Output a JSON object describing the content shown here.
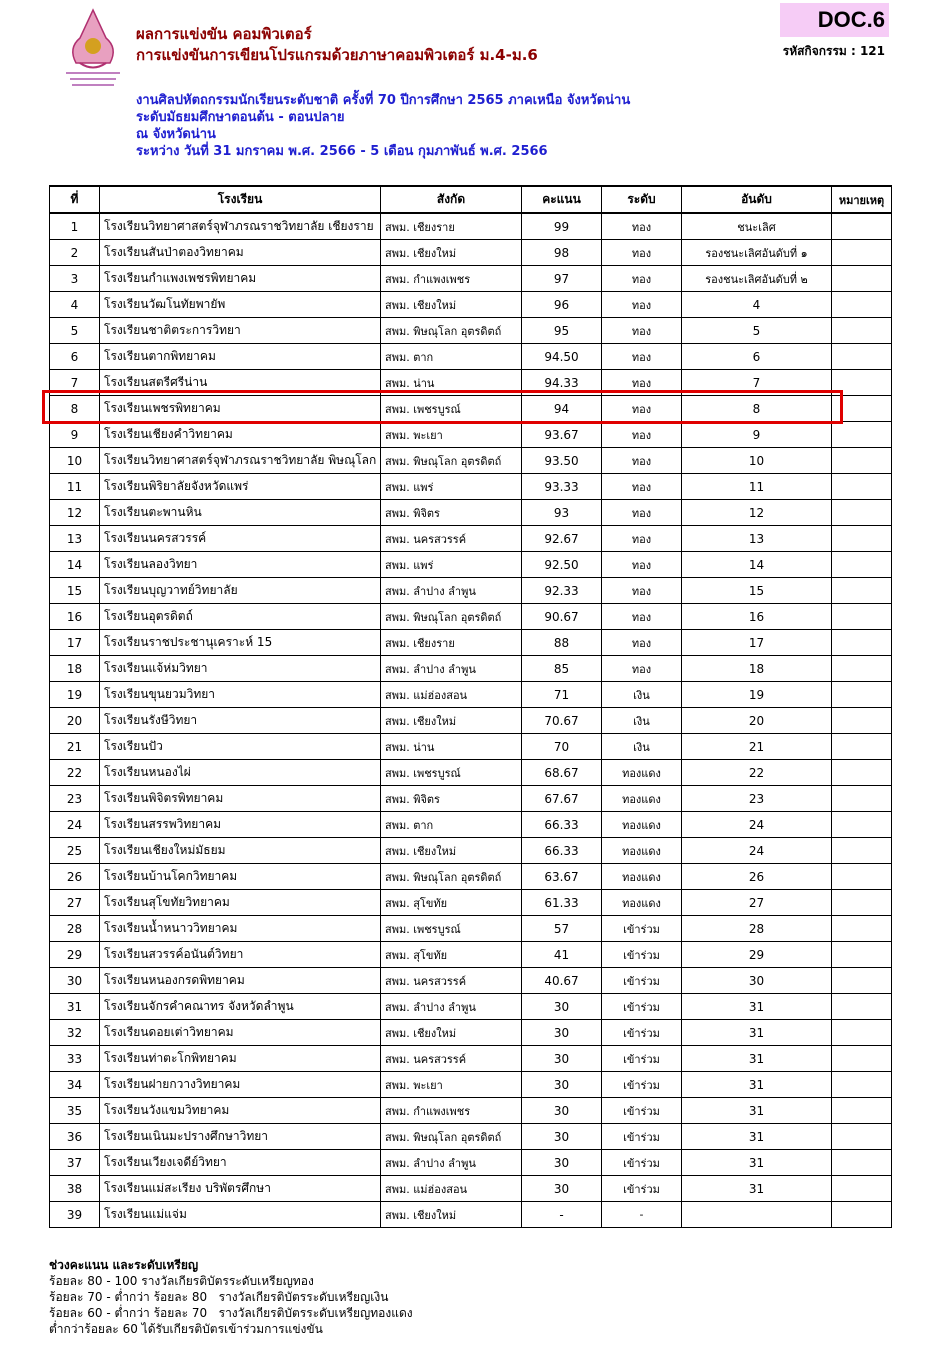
{
  "header": {
    "title1": "ผลการแข่งขัน คอมพิวเตอร์",
    "title2": "การแข่งขันการเขียนโปรแกรมด้วยภาษาคอมพิวเตอร์ ม.4-ม.6",
    "line1": "งานศิลปหัตถกรรมนักเรียนระดับชาติ ครั้งที่ 70 ปีการศึกษา 2565 ภาคเหนือ จังหวัดน่าน",
    "line2": "ระดับมัธยมศึกษาตอนต้น - ตอนปลาย",
    "line3": "ณ จังหวัดน่าน",
    "line4": "ระหว่าง วันที่ 31 มกราคม พ.ศ. 2566 - 5 เดือน กุมภาพันธ์ พ.ศ. 2566",
    "doc": "DOC.6",
    "code": "รหัสกิจกรรม : 121"
  },
  "table": {
    "columns": [
      "ที่",
      "โรงเรียน",
      "สังกัด",
      "คะแนน",
      "ระดับ",
      "อันดับ",
      "หมายเหตุ"
    ],
    "highlighted_row": 8,
    "rows": [
      [
        "1",
        "โรงเรียนวิทยาศาสตร์จุฬาภรณราชวิทยาลัย เชียงราย",
        "สพม. เชียงราย",
        "99",
        "ทอง",
        "ชนะเลิศ",
        ""
      ],
      [
        "2",
        "โรงเรียนสันป่าตองวิทยาคม",
        "สพม. เชียงใหม่",
        "98",
        "ทอง",
        "รองชนะเลิศอันดับที่ ๑",
        ""
      ],
      [
        "3",
        "โรงเรียนกำแพงเพชรพิทยาคม",
        "สพม. กำแพงเพชร",
        "97",
        "ทอง",
        "รองชนะเลิศอันดับที่ ๒",
        ""
      ],
      [
        "4",
        "โรงเรียนวัฒโนทัยพายัพ",
        "สพม. เชียงใหม่",
        "96",
        "ทอง",
        "4",
        ""
      ],
      [
        "5",
        "โรงเรียนชาติตระการวิทยา",
        "สพม. พิษณุโลก อุตรดิตถ์",
        "95",
        "ทอง",
        "5",
        ""
      ],
      [
        "6",
        "โรงเรียนตากพิทยาคม",
        "สพม. ตาก",
        "94.50",
        "ทอง",
        "6",
        ""
      ],
      [
        "7",
        "โรงเรียนสตรีศรีน่าน",
        "สพม. น่าน",
        "94.33",
        "ทอง",
        "7",
        ""
      ],
      [
        "8",
        "โรงเรียนเพชรพิทยาคม",
        "สพม. เพชรบูรณ์",
        "94",
        "ทอง",
        "8",
        ""
      ],
      [
        "9",
        "โรงเรียนเชียงคำวิทยาคม",
        "สพม. พะเยา",
        "93.67",
        "ทอง",
        "9",
        ""
      ],
      [
        "10",
        "โรงเรียนวิทยาศาสตร์จุฬาภรณราชวิทยาลัย พิษณุโลก",
        "สพม. พิษณุโลก อุตรดิตถ์",
        "93.50",
        "ทอง",
        "10",
        ""
      ],
      [
        "11",
        "โรงเรียนพิริยาลัยจังหวัดแพร่",
        "สพม. แพร่",
        "93.33",
        "ทอง",
        "11",
        ""
      ],
      [
        "12",
        "โรงเรียนตะพานหิน",
        "สพม. พิจิตร",
        "93",
        "ทอง",
        "12",
        ""
      ],
      [
        "13",
        "โรงเรียนนครสวรรค์",
        "สพม. นครสวรรค์",
        "92.67",
        "ทอง",
        "13",
        ""
      ],
      [
        "14",
        "โรงเรียนลองวิทยา",
        "สพม. แพร่",
        "92.50",
        "ทอง",
        "14",
        ""
      ],
      [
        "15",
        "โรงเรียนบุญวาทย์วิทยาลัย",
        "สพม. ลำปาง ลำพูน",
        "92.33",
        "ทอง",
        "15",
        ""
      ],
      [
        "16",
        "โรงเรียนอุตรดิตถ์",
        "สพม. พิษณุโลก อุตรดิตถ์",
        "90.67",
        "ทอง",
        "16",
        ""
      ],
      [
        "17",
        "โรงเรียนราชประชานุเคราะห์ 15",
        "สพม. เชียงราย",
        "88",
        "ทอง",
        "17",
        ""
      ],
      [
        "18",
        "โรงเรียนแจ้ห่มวิทยา",
        "สพม. ลำปาง ลำพูน",
        "85",
        "ทอง",
        "18",
        ""
      ],
      [
        "19",
        "โรงเรียนขุนยวมวิทยา",
        "สพม. แม่ฮ่องสอน",
        "71",
        "เงิน",
        "19",
        ""
      ],
      [
        "20",
        "โรงเรียนรังษีวิทยา",
        "สพม. เชียงใหม่",
        "70.67",
        "เงิน",
        "20",
        ""
      ],
      [
        "21",
        "โรงเรียนปัว",
        "สพม. น่าน",
        "70",
        "เงิน",
        "21",
        ""
      ],
      [
        "22",
        "โรงเรียนหนองไผ่",
        "สพม. เพชรบูรณ์",
        "68.67",
        "ทองแดง",
        "22",
        ""
      ],
      [
        "23",
        "โรงเรียนพิจิตรพิทยาคม",
        "สพม. พิจิตร",
        "67.67",
        "ทองแดง",
        "23",
        ""
      ],
      [
        "24",
        "โรงเรียนสรรพวิทยาคม",
        "สพม. ตาก",
        "66.33",
        "ทองแดง",
        "24",
        ""
      ],
      [
        "25",
        "โรงเรียนเชียงใหม่มัธยม",
        "สพม. เชียงใหม่",
        "66.33",
        "ทองแดง",
        "24",
        ""
      ],
      [
        "26",
        "โรงเรียนบ้านโคกวิทยาคม",
        "สพม. พิษณุโลก อุตรดิตถ์",
        "63.67",
        "ทองแดง",
        "26",
        ""
      ],
      [
        "27",
        "โรงเรียนสุโขทัยวิทยาคม",
        "สพม. สุโขทัย",
        "61.33",
        "ทองแดง",
        "27",
        ""
      ],
      [
        "28",
        "โรงเรียนน้ำหนาววิทยาคม",
        "สพม. เพชรบูรณ์",
        "57",
        "เข้าร่วม",
        "28",
        ""
      ],
      [
        "29",
        "โรงเรียนสวรรค์อนันต์วิทยา",
        "สพม. สุโขทัย",
        "41",
        "เข้าร่วม",
        "29",
        ""
      ],
      [
        "30",
        "โรงเรียนหนองกรดพิทยาคม",
        "สพม. นครสวรรค์",
        "40.67",
        "เข้าร่วม",
        "30",
        ""
      ],
      [
        "31",
        "โรงเรียนจักรคำคณาทร จังหวัดลำพูน",
        "สพม. ลำปาง ลำพูน",
        "30",
        "เข้าร่วม",
        "31",
        ""
      ],
      [
        "32",
        "โรงเรียนดอยเต่าวิทยาคม",
        "สพม. เชียงใหม่",
        "30",
        "เข้าร่วม",
        "31",
        ""
      ],
      [
        "33",
        "โรงเรียนท่าตะโกพิทยาคม",
        "สพม. นครสวรรค์",
        "30",
        "เข้าร่วม",
        "31",
        ""
      ],
      [
        "34",
        "โรงเรียนฝายกวางวิทยาคม",
        "สพม. พะเยา",
        "30",
        "เข้าร่วม",
        "31",
        ""
      ],
      [
        "35",
        "โรงเรียนวังแขมวิทยาคม",
        "สพม. กำแพงเพชร",
        "30",
        "เข้าร่วม",
        "31",
        ""
      ],
      [
        "36",
        "โรงเรียนเนินมะปรางศึกษาวิทยา",
        "สพม. พิษณุโลก อุตรดิตถ์",
        "30",
        "เข้าร่วม",
        "31",
        ""
      ],
      [
        "37",
        "โรงเรียนเวียงเจดีย์วิทยา",
        "สพม. ลำปาง ลำพูน",
        "30",
        "เข้าร่วม",
        "31",
        ""
      ],
      [
        "38",
        "โรงเรียนแม่สะเรียง บริพัตรศึกษา",
        "สพม. แม่ฮ่องสอน",
        "30",
        "เข้าร่วม",
        "31",
        ""
      ],
      [
        "39",
        "โรงเรียนแม่แจ่ม",
        "สพม. เชียงใหม่",
        "-",
        "-",
        "",
        ""
      ]
    ]
  },
  "legend": {
    "title": "ช่วงคะแนน และระดับเหรียญ",
    "lines": [
      "ร้อยละ 80 - 100 รางวัลเกียรติบัตรระดับเหรียญทอง",
      "ร้อยละ 70 - ต่ำกว่า ร้อยละ 80   รางวัลเกียรติบัตรระดับเหรียญเงิน",
      "ร้อยละ 60 - ต่ำกว่า ร้อยละ 70   รางวัลเกียรติบัตรระดับเหรียญทองแดง",
      "ต่ำกว่าร้อยละ 60 ได้รับเกียรติบัตรเข้าร่วมการแข่งขัน"
    ]
  },
  "colors": {
    "highlight": "#e00000",
    "title": "#8b0000",
    "subtitle": "#1f1fd0",
    "doc_badge": "#f6ccf6"
  }
}
